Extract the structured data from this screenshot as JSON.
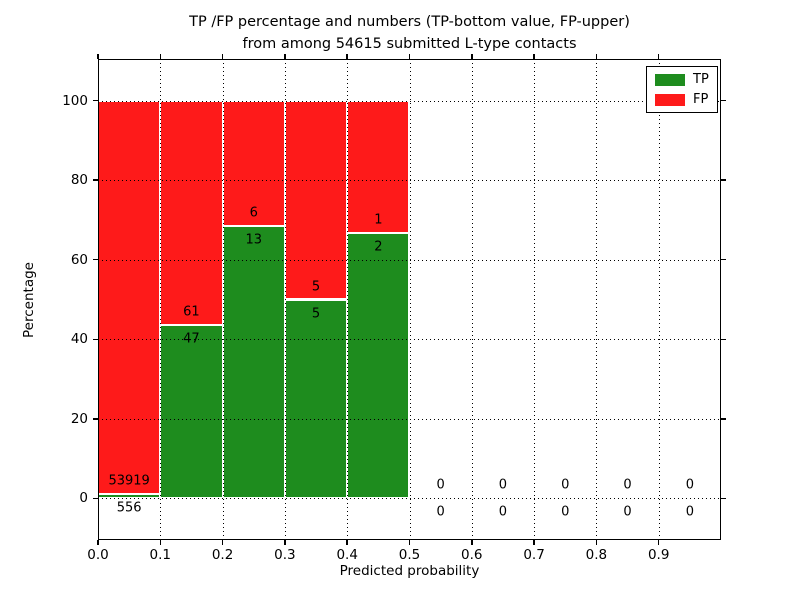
{
  "chart_data": {
    "type": "bar",
    "stacked": true,
    "title_line1": "TP /FP percentage and numbers (TP-bottom value, FP-upper)",
    "title_line2": "from among 54615 submitted L-type contacts",
    "total_submitted_contacts": 54615,
    "xlabel": "Predicted probability",
    "ylabel": "Percentage",
    "xlim": [
      0.0,
      1.0
    ],
    "ylim": [
      -10.5,
      110.5
    ],
    "xticks": [
      "0.0",
      "0.1",
      "0.2",
      "0.3",
      "0.4",
      "0.5",
      "0.6",
      "0.7",
      "0.8",
      "0.9"
    ],
    "yticks": [
      "0",
      "20",
      "40",
      "60",
      "80",
      "100"
    ],
    "grid": "dotted-black-both-axes-drawn-above-bars",
    "legend_position": "upper-right",
    "legend": {
      "entries": [
        {
          "label": "TP",
          "color": "#1e8c1e"
        },
        {
          "label": "FP",
          "color": "#fe1a1a"
        }
      ]
    },
    "colors": {
      "tp": "#1e8c1e",
      "fp": "#fe1a1a"
    },
    "bins": [
      {
        "range": [
          0.0,
          0.1
        ],
        "tp": 556,
        "fp": 53919,
        "tp_pct": 1.02,
        "fp_pct": 98.98
      },
      {
        "range": [
          0.1,
          0.2
        ],
        "tp": 47,
        "fp": 61,
        "tp_pct": 43.52,
        "fp_pct": 56.48
      },
      {
        "range": [
          0.2,
          0.3
        ],
        "tp": 13,
        "fp": 6,
        "tp_pct": 68.42,
        "fp_pct": 31.58
      },
      {
        "range": [
          0.3,
          0.4
        ],
        "tp": 5,
        "fp": 5,
        "tp_pct": 50.0,
        "fp_pct": 50.0
      },
      {
        "range": [
          0.4,
          0.5
        ],
        "tp": 2,
        "fp": 1,
        "tp_pct": 66.67,
        "fp_pct": 33.33
      },
      {
        "range": [
          0.5,
          0.6
        ],
        "tp": 0,
        "fp": 0,
        "tp_pct": 0,
        "fp_pct": 0
      },
      {
        "range": [
          0.6,
          0.7
        ],
        "tp": 0,
        "fp": 0,
        "tp_pct": 0,
        "fp_pct": 0
      },
      {
        "range": [
          0.7,
          0.8
        ],
        "tp": 0,
        "fp": 0,
        "tp_pct": 0,
        "fp_pct": 0
      },
      {
        "range": [
          0.8,
          0.9
        ],
        "tp": 0,
        "fp": 0,
        "tp_pct": 0,
        "fp_pct": 0
      },
      {
        "range": [
          0.9,
          1.0
        ],
        "tp": 0,
        "fp": 0,
        "tp_pct": 0,
        "fp_pct": 0
      }
    ]
  }
}
